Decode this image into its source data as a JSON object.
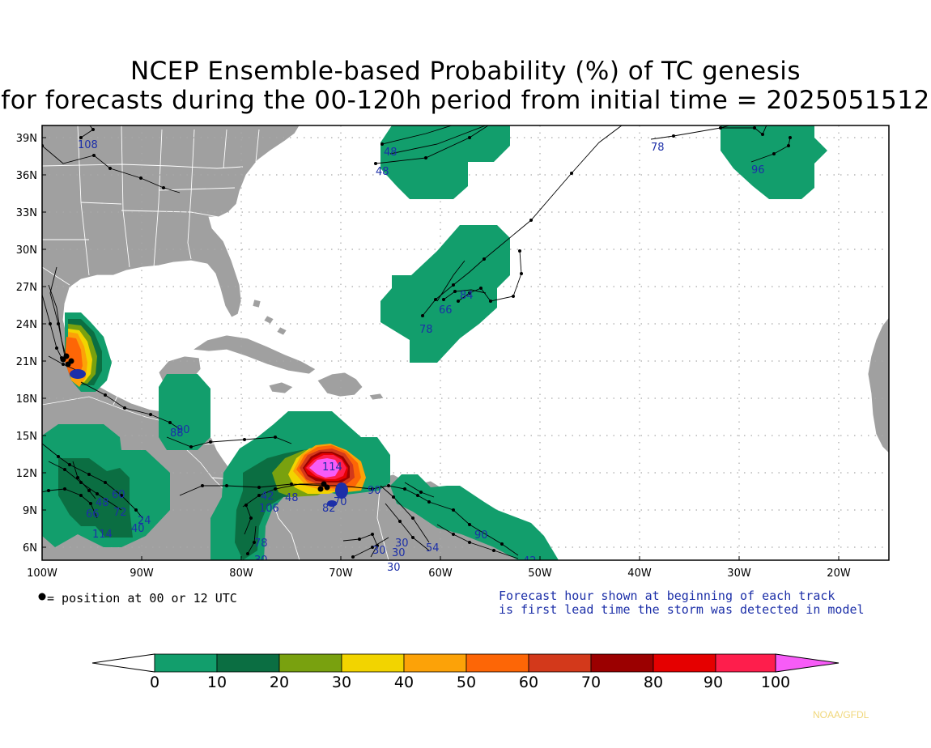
{
  "title": {
    "line1": "NCEP Ensemble-based Probability (%) of TC genesis",
    "line2": "for forecasts during the 00-120h period from initial time = 2025051512"
  },
  "map": {
    "lon_range": [
      -100,
      -15
    ],
    "lat_range": [
      5,
      40
    ],
    "lat_ticks": [
      "39N",
      "36N",
      "33N",
      "30N",
      "27N",
      "24N",
      "21N",
      "18N",
      "15N",
      "12N",
      "9N",
      "6N"
    ],
    "lon_ticks": [
      "100W",
      "90W",
      "80W",
      "70W",
      "60W",
      "50W",
      "40W",
      "30W",
      "20W"
    ],
    "colors": {
      "ocean": "#ffffff",
      "land": "#a0a0a0",
      "border": "#ffffff",
      "grid": "#a9a9a9",
      "track": "#000000",
      "hour_label": "#1c2fa8"
    },
    "hour_labels": [
      "108",
      "48",
      "48",
      "78",
      "96",
      "84",
      "66",
      "78",
      "90",
      "88",
      "60",
      "48",
      "72",
      "66",
      "24",
      "40",
      "114",
      "114",
      "106",
      "42",
      "48",
      "82",
      "70",
      "90",
      "90",
      "78",
      "30",
      "30",
      "30",
      "30",
      "54",
      "42"
    ]
  },
  "legend": {
    "dot_text": "= position at 00 or 12 UTC",
    "note_line1": "Forecast hour shown at beginning of each track",
    "note_line2": "is first lead time the storm was detected in model"
  },
  "colorbar": {
    "labels": [
      "0",
      "10",
      "20",
      "30",
      "40",
      "50",
      "60",
      "70",
      "80",
      "90",
      "100"
    ],
    "colors": [
      "#129e6c",
      "#0b6e42",
      "#79a10f",
      "#f2d400",
      "#fca208",
      "#fd6606",
      "#d3391b",
      "#9b0000",
      "#e50000",
      "#fe1e4c",
      "#f75cf7"
    ]
  },
  "credit": "NOAA/GFDL"
}
